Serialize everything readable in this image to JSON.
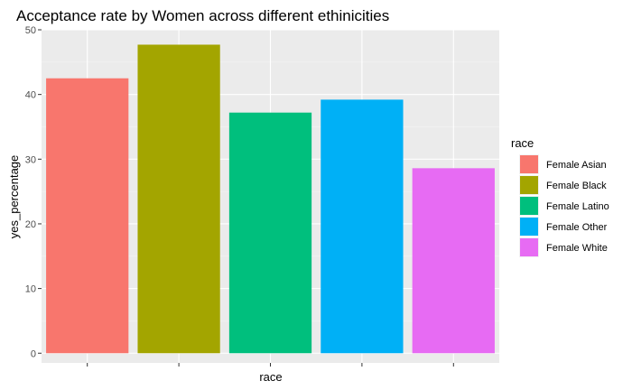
{
  "chart_data": {
    "type": "bar",
    "title": "Acceptance rate by Women across different ethinicities",
    "xlabel": "race",
    "ylabel": "yes_percentage",
    "categories": [
      "Female Asian",
      "Female Black",
      "Female Latino",
      "Female Other",
      "Female White"
    ],
    "values": [
      42.5,
      47.7,
      37.2,
      39.2,
      28.6
    ],
    "ylim": [
      -1.5,
      50
    ],
    "yticks": [
      "0",
      "10",
      "20",
      "30",
      "40",
      "50"
    ],
    "colors": [
      "#F8766D",
      "#A3A500",
      "#00BF7D",
      "#00B0F6",
      "#E76BF3"
    ],
    "grid": true,
    "legend": {
      "title": "race",
      "position": "right"
    }
  }
}
